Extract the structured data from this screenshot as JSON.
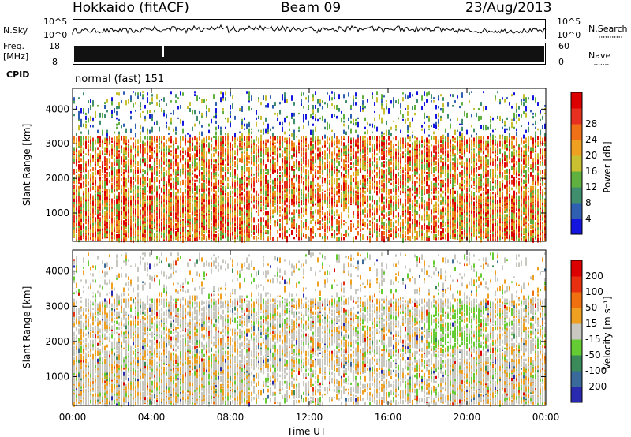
{
  "header": {
    "radar": "Hokkaido (fitACF)",
    "beam": "Beam 09",
    "date": "23/Aug/2013"
  },
  "top_panels": {
    "nsky_label": "N.Sky",
    "nsearch_label": "N.Search",
    "nsky_ticks": [
      "10^5",
      "10^0"
    ],
    "nsearch_ticks": [
      "10^5",
      "10^0"
    ],
    "freq_label_1": "Freq.",
    "freq_label_2": "[MHz]",
    "freq_ticks": [
      "18",
      "8"
    ],
    "nave_label": "Nave",
    "nave_ticks": [
      "60",
      "0"
    ],
    "cpid_label": "CPID",
    "cpid_text": "normal (fast) 151"
  },
  "x_axis": {
    "label": "Time UT",
    "ticks": [
      "00:00",
      "04:00",
      "08:00",
      "12:00",
      "16:00",
      "20:00",
      "00:00"
    ]
  },
  "chart_data": [
    {
      "type": "heatmap",
      "name": "power",
      "ylabel": "Slant Range [km]",
      "y_ticks": [
        1000,
        2000,
        3000,
        4000
      ],
      "ylim": [
        180,
        4600
      ],
      "colorbar_label": "Power [dB]",
      "colorbar_ticks": [
        "4",
        "8",
        "12",
        "16",
        "20",
        "24",
        "28"
      ],
      "colors": [
        "#1515e0",
        "#2f5fb0",
        "#3f8f6f",
        "#60b040",
        "#c8c030",
        "#f0a020",
        "#f07018",
        "#e83020",
        "#dd0000"
      ]
    },
    {
      "type": "heatmap",
      "name": "velocity",
      "ylabel": "Slant Range [km]",
      "y_ticks": [
        1000,
        2000,
        3000,
        4000
      ],
      "ylim": [
        180,
        4600
      ],
      "colorbar_label": "Velocity [m s⁻¹]",
      "colorbar_ticks": [
        "200",
        "100",
        "50",
        "15",
        "-15",
        "-50",
        "-100",
        "-200"
      ],
      "colors": [
        "#2a2ab0",
        "#3a6a9a",
        "#3a8a5a",
        "#66cc33",
        "#c8c8c0",
        "#f0a020",
        "#f07010",
        "#e83010",
        "#dd0000"
      ]
    }
  ]
}
